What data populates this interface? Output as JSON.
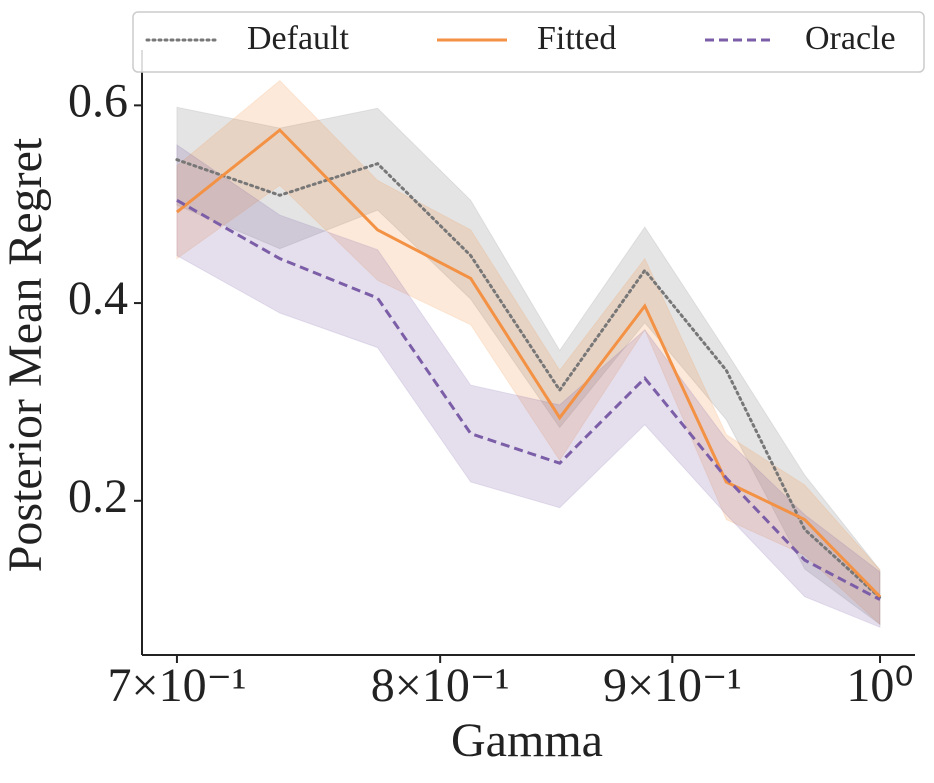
{
  "chart_data": {
    "type": "line",
    "xlabel": "Gamma",
    "ylabel": "Posterior Mean Regret",
    "xscale": "log",
    "x": [
      0.7,
      0.7375,
      0.775,
      0.8125,
      0.85,
      0.8875,
      0.925,
      0.9625,
      1.0
    ],
    "xlim": [
      0.6877,
      1.0179
    ],
    "xticks": [
      {
        "value": 0.7,
        "label": "7×10⁻¹"
      },
      {
        "value": 0.8,
        "label": "8×10⁻¹"
      },
      {
        "value": 0.9,
        "label": "9×10⁻¹"
      },
      {
        "value": 1.0,
        "label": "10⁰"
      }
    ],
    "ylim": [
      0.044,
      0.656
    ],
    "yticks": [
      0.2,
      0.4,
      0.6
    ],
    "legend": "upper center",
    "series": [
      {
        "name": "Default",
        "color": "#777777",
        "linestyle": "dotted",
        "values": [
          0.545,
          0.509,
          0.541,
          0.448,
          0.312,
          0.433,
          0.332,
          0.171,
          0.102
        ],
        "upper": [
          0.598,
          0.577,
          0.597,
          0.504,
          0.352,
          0.477,
          0.351,
          0.226,
          0.13
        ],
        "lower": [
          0.499,
          0.455,
          0.494,
          0.404,
          0.274,
          0.38,
          0.282,
          0.131,
          0.075
        ]
      },
      {
        "name": "Fitted",
        "color": "#f39244",
        "linestyle": "solid",
        "values": [
          0.492,
          0.575,
          0.474,
          0.425,
          0.284,
          0.397,
          0.219,
          0.181,
          0.103
        ],
        "upper": [
          0.539,
          0.625,
          0.524,
          0.474,
          0.332,
          0.445,
          0.267,
          0.216,
          0.13
        ],
        "lower": [
          0.445,
          0.519,
          0.423,
          0.378,
          0.241,
          0.373,
          0.181,
          0.145,
          0.075
        ]
      },
      {
        "name": "Oracle",
        "color": "#7b5ea7",
        "linestyle": "dashed",
        "values": [
          0.504,
          0.445,
          0.405,
          0.268,
          0.238,
          0.324,
          0.223,
          0.14,
          0.1
        ],
        "upper": [
          0.56,
          0.489,
          0.454,
          0.317,
          0.297,
          0.373,
          0.262,
          0.186,
          0.128
        ],
        "lower": [
          0.448,
          0.39,
          0.355,
          0.219,
          0.193,
          0.277,
          0.186,
          0.103,
          0.072
        ]
      }
    ]
  }
}
